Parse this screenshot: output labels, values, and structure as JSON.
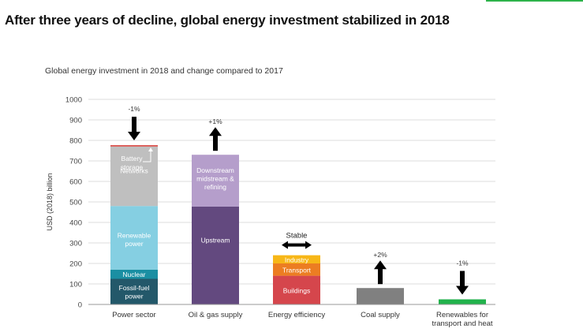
{
  "header": {
    "title": "After three years of decline, global energy investment stabilized in 2018",
    "accent_color": "#2db34a"
  },
  "chart_data": {
    "type": "bar",
    "stacked": true,
    "title": "Global energy investment in 2018 and change compared to 2017",
    "xlabel": "",
    "ylabel": "USD (2018) billion",
    "ylim": [
      0,
      1000
    ],
    "yticks": [
      0,
      100,
      200,
      300,
      400,
      500,
      600,
      700,
      800,
      900,
      1000
    ],
    "grid": true,
    "categories": [
      {
        "label": "Power sector",
        "change": "-1%",
        "direction": "down",
        "segments": [
          {
            "name": "Fossil-fuel power",
            "value": 125,
            "color": "#23586a",
            "text_color": "#ffffff"
          },
          {
            "name": "Nuclear",
            "value": 45,
            "color": "#1a8fa3",
            "text_color": "#ffffff"
          },
          {
            "name": "Renewable power",
            "value": 310,
            "color": "#85cfe2",
            "text_color": "#ffffff"
          },
          {
            "name": "Networks",
            "value": 290,
            "color": "#bfbfbf",
            "text_color": "#ffffff"
          },
          {
            "name": "Battery storage",
            "value": 7,
            "color": "#d9534f",
            "text_color": "#ffffff",
            "callout": true
          }
        ]
      },
      {
        "label": "Oil & gas supply",
        "change": "+1%",
        "direction": "up",
        "segments": [
          {
            "name": "Upstream",
            "value": 477,
            "color": "#63497f",
            "text_color": "#ffffff"
          },
          {
            "name": "Downstream midstream & refining",
            "value": 253,
            "color": "#b59ecb",
            "text_color": "#ffffff"
          }
        ]
      },
      {
        "label": "Energy efficiency",
        "change": "Stable",
        "direction": "both",
        "segments": [
          {
            "name": "Buildings",
            "value": 140,
            "color": "#d5464c",
            "text_color": "#ffffff"
          },
          {
            "name": "Transport",
            "value": 60,
            "color": "#ec7d22",
            "text_color": "#ffffff"
          },
          {
            "name": "Industry",
            "value": 40,
            "color": "#f7b718",
            "text_color": "#ffffff"
          }
        ]
      },
      {
        "label": "Coal supply",
        "change": "+2%",
        "direction": "up",
        "segments": [
          {
            "name": "Coal supply",
            "value": 80,
            "color": "#808080",
            "text_color": ""
          }
        ]
      },
      {
        "label": "Renewables for transport and heat",
        "change": "-1%",
        "direction": "down",
        "segments": [
          {
            "name": "Renewables for transport and heat",
            "value": 25,
            "color": "#22b24c",
            "text_color": ""
          }
        ]
      }
    ]
  }
}
